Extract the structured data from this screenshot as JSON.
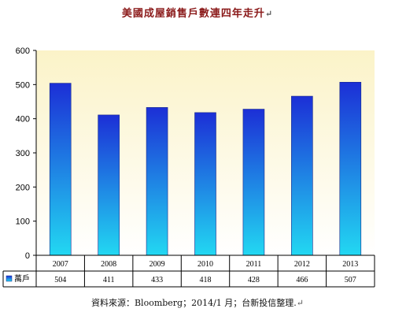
{
  "title": "美國成屋銷售戶數連四年走升",
  "title_mark": "↵",
  "source": "資料來源：Bloomberg；2014/1 月；台新投信整理.",
  "source_mark": "↵",
  "chart_data": {
    "type": "bar",
    "categories": [
      "2007",
      "2008",
      "2009",
      "2010",
      "2011",
      "2012",
      "2013"
    ],
    "series": [
      {
        "name": "萬戶",
        "values": [
          504,
          411,
          433,
          418,
          428,
          466,
          507
        ]
      }
    ],
    "data_labels": [
      "504",
      "411",
      "433",
      "418",
      "428",
      "466",
      "507"
    ],
    "yticks": [
      "0",
      "100",
      "200",
      "300",
      "400",
      "500",
      "600"
    ],
    "ylim": [
      0,
      600
    ],
    "grid": false,
    "legend": "data table",
    "colors": {
      "bar_top": "#1c2fd6",
      "bar_bottom": "#22d8f2",
      "plot_bg_top": "#fbf3c8",
      "plot_bg_bottom": "#ffffff",
      "axis": "#000000"
    }
  }
}
